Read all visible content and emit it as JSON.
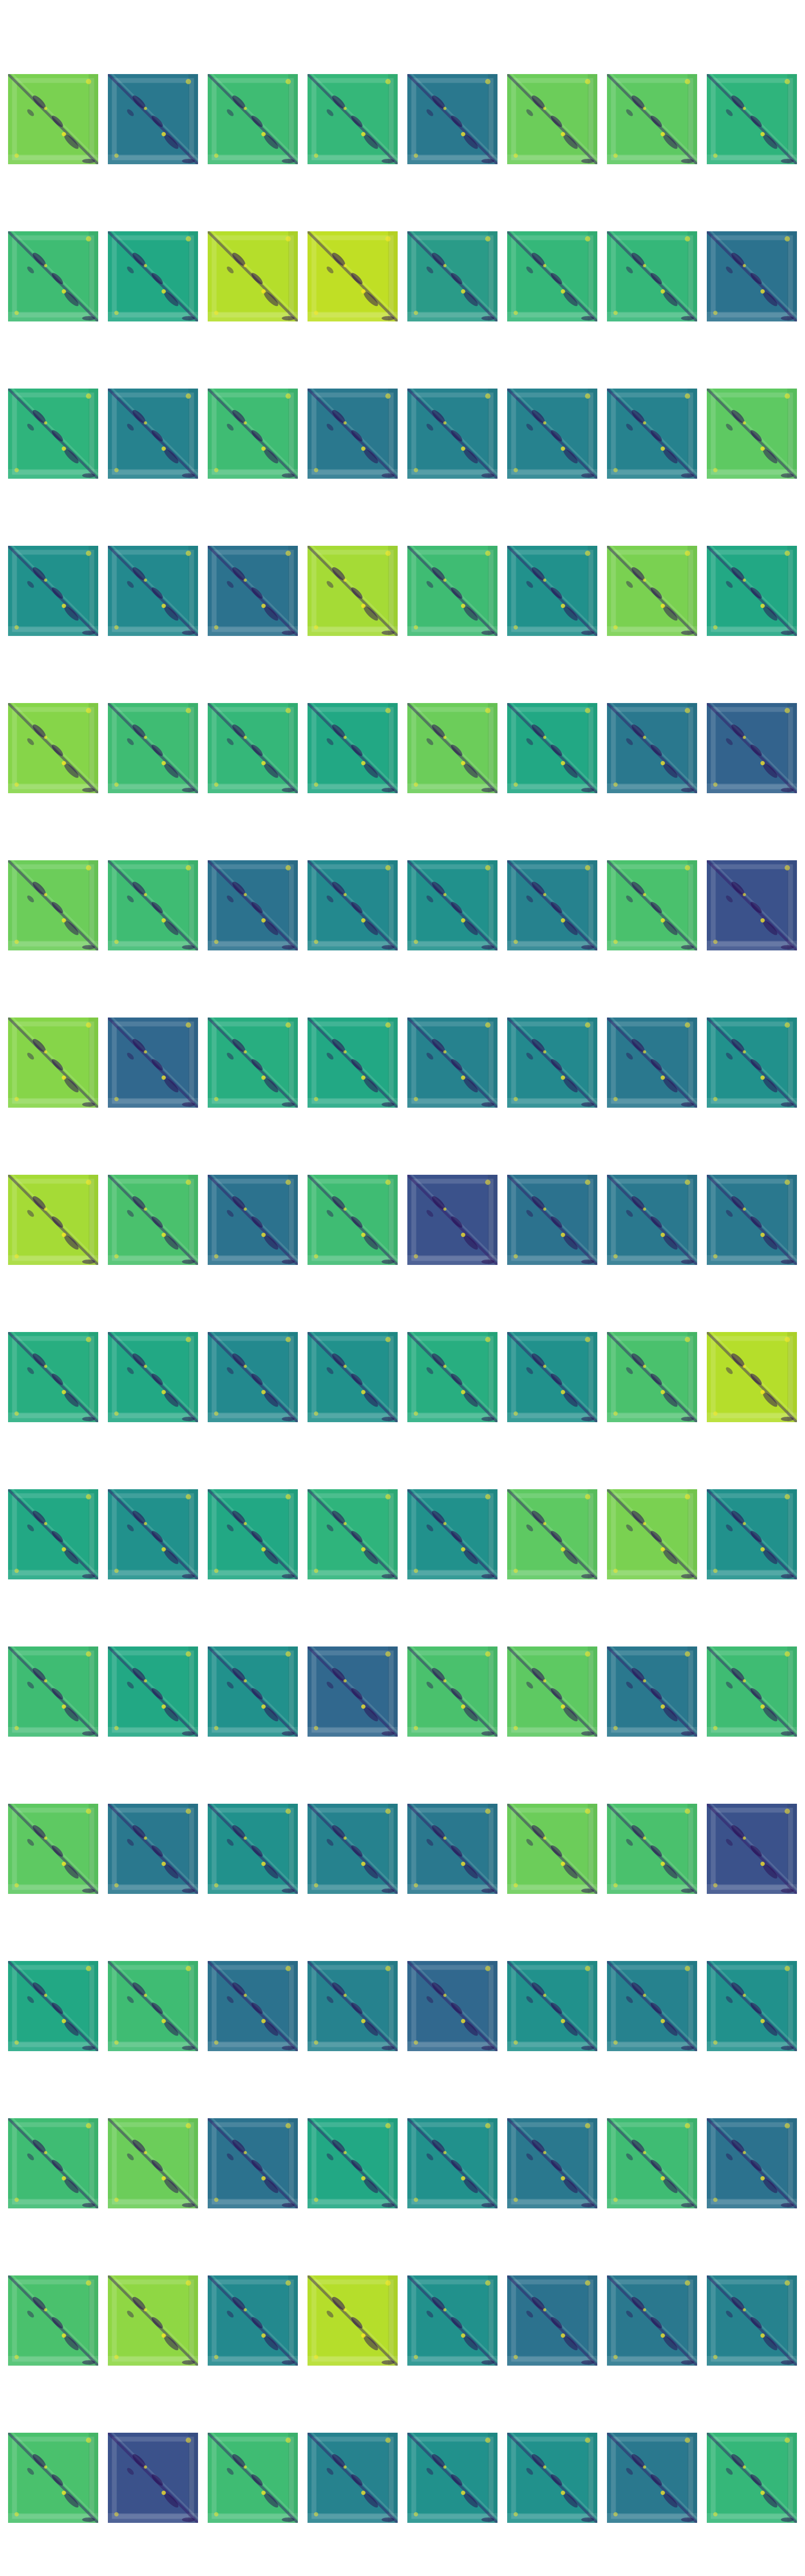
{
  "panels": [
    [
      "#7ad151",
      "#2a788e",
      "#3fbc73",
      "#35b779",
      "#2a788e",
      "#6ccd5a",
      "#5ec962",
      "#2fb47c"
    ],
    [
      "#3fbc73",
      "#22a884",
      "#b5de2b",
      "#c0df25",
      "#2a9b88",
      "#35b779",
      "#35b779",
      "#2c728e"
    ],
    [
      "#2fb47c",
      "#26828e",
      "#3fbc73",
      "#2a788e",
      "#26828e",
      "#26828e",
      "#26828e",
      "#5ec962"
    ],
    [
      "#21918c",
      "#23898e",
      "#2c728e",
      "#a5db36",
      "#3fbc73",
      "#21918c",
      "#7ad151",
      "#22a884"
    ],
    [
      "#86d549",
      "#3fbc73",
      "#35b779",
      "#22a884",
      "#6ccd5a",
      "#22a884",
      "#2a788e",
      "#33638d"
    ],
    [
      "#6ccd5a",
      "#3fbc73",
      "#2c728e",
      "#23898e",
      "#21918c",
      "#26828e",
      "#4ac16d",
      "#3b528b"
    ],
    [
      "#86d549",
      "#31688e",
      "#28ae80",
      "#22a884",
      "#26828e",
      "#23898e",
      "#2a788e",
      "#21918c"
    ],
    [
      "#a5db36",
      "#4ac16d",
      "#2c728e",
      "#3fbc73",
      "#3b528b",
      "#2c728e",
      "#2a788e",
      "#2a788e"
    ],
    [
      "#28ae80",
      "#22a884",
      "#23898e",
      "#21918c",
      "#28ae80",
      "#21918c",
      "#4ac16d",
      "#b5de2b"
    ],
    [
      "#22a884",
      "#21918c",
      "#22a884",
      "#2fb47c",
      "#21918c",
      "#5ec962",
      "#7ad151",
      "#21918c"
    ],
    [
      "#3fbc73",
      "#22a884",
      "#21918c",
      "#31688e",
      "#4ac16d",
      "#5ec962",
      "#2a788e",
      "#3fbc73"
    ],
    [
      "#5ec962",
      "#2a788e",
      "#21918c",
      "#26828e",
      "#2a788e",
      "#6ccd5a",
      "#4ac16d",
      "#3b528b"
    ],
    [
      "#22a884",
      "#3fbc73",
      "#2c728e",
      "#26828e",
      "#31688e",
      "#21918c",
      "#26828e",
      "#21918c"
    ],
    [
      "#3fbc73",
      "#6ccd5a",
      "#2c728e",
      "#22a884",
      "#21918c",
      "#2a788e",
      "#3fbc73",
      "#2c728e"
    ],
    [
      "#4ac16d",
      "#8fd744",
      "#23898e",
      "#b5de2b",
      "#21918c",
      "#2c728e",
      "#2a788e",
      "#26828e"
    ],
    [
      "#4ac16d",
      "#3b528b",
      "#3fbc73",
      "#26828e",
      "#21918c",
      "#21918c",
      "#2a788e",
      "#35b779"
    ]
  ]
}
